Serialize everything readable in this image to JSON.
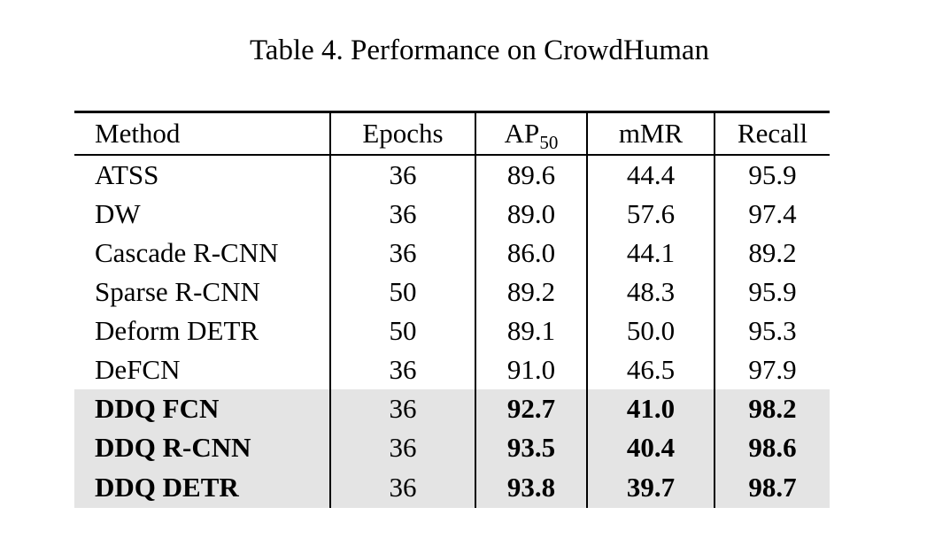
{
  "caption": "Table 4. Performance on CrowdHuman",
  "table": {
    "header": {
      "method": "Method",
      "epochs": "Epochs",
      "ap_label": "AP",
      "ap_sub": "50",
      "mmr": "mMR",
      "recall": "Recall"
    },
    "rows": [
      {
        "method": "ATSS",
        "epochs": "36",
        "ap50": "89.6",
        "mmr": "44.4",
        "recall": "95.9",
        "highlight": false
      },
      {
        "method": "DW",
        "epochs": "36",
        "ap50": "89.0",
        "mmr": "57.6",
        "recall": "97.4",
        "highlight": false
      },
      {
        "method": "Cascade R-CNN",
        "epochs": "36",
        "ap50": "86.0",
        "mmr": "44.1",
        "recall": "89.2",
        "highlight": false
      },
      {
        "method": "Sparse R-CNN",
        "epochs": "50",
        "ap50": "89.2",
        "mmr": "48.3",
        "recall": "95.9",
        "highlight": false
      },
      {
        "method": "Deform DETR",
        "epochs": "50",
        "ap50": "89.1",
        "mmr": "50.0",
        "recall": "95.3",
        "highlight": false
      },
      {
        "method": "DeFCN",
        "epochs": "36",
        "ap50": "91.0",
        "mmr": "46.5",
        "recall": "97.9",
        "highlight": false
      },
      {
        "method": "DDQ FCN",
        "epochs": "36",
        "ap50": "92.7",
        "mmr": "41.0",
        "recall": "98.2",
        "highlight": true
      },
      {
        "method": "DDQ R-CNN",
        "epochs": "36",
        "ap50": "93.5",
        "mmr": "40.4",
        "recall": "98.6",
        "highlight": true
      },
      {
        "method": "DDQ DETR",
        "epochs": "36",
        "ap50": "93.8",
        "mmr": "39.7",
        "recall": "98.7",
        "highlight": true
      }
    ],
    "colors": {
      "highlight_background": "#e4e4e4",
      "rule": "#000000",
      "text": "#000000",
      "page_background": "#ffffff"
    }
  }
}
